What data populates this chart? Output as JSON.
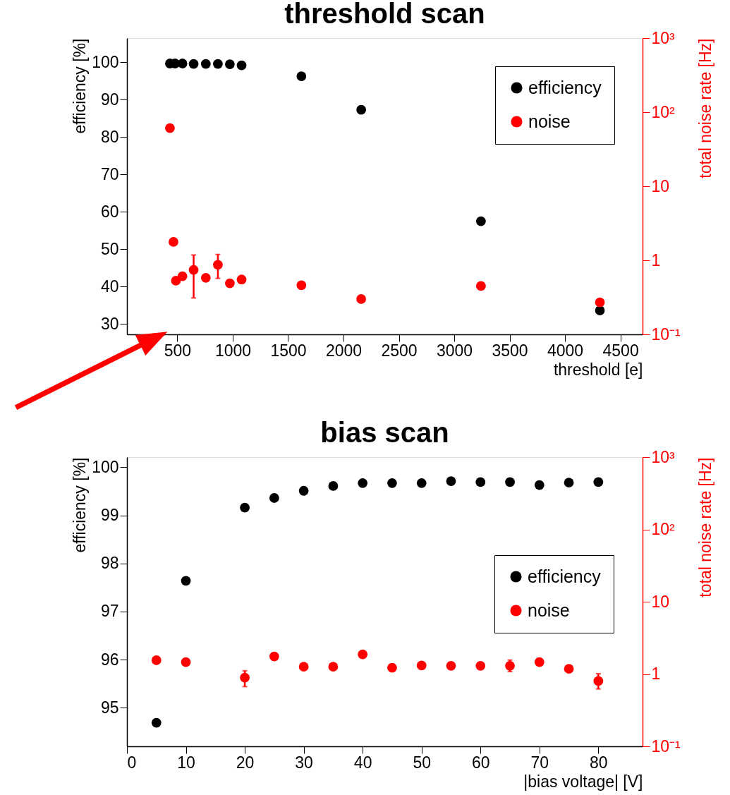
{
  "chart_data": [
    {
      "type": "scatter",
      "title": "threshold scan",
      "xlabel": "threshold [e]",
      "ylabel": "efficiency [%]",
      "y2label": "total noise rate [Hz]",
      "xlim": [
        45,
        4700
      ],
      "xticks": [
        500,
        1000,
        1500,
        2000,
        2500,
        3000,
        3500,
        4000,
        4500
      ],
      "ylim": [
        27.2,
        106.5
      ],
      "yticks": [
        30,
        40,
        50,
        60,
        70,
        80,
        90,
        100
      ],
      "y2lim": [
        0.1,
        1000
      ],
      "y2ticks": [
        {
          "value": 0.1,
          "label": "10⁻¹"
        },
        {
          "value": 1,
          "label": "1"
        },
        {
          "value": 10,
          "label": "10"
        },
        {
          "value": 100,
          "label": "10²"
        },
        {
          "value": 1000,
          "label": "10³"
        }
      ],
      "log": "y2",
      "grid": false,
      "legend": "top right",
      "marker": "circle",
      "series": [
        {
          "name": "efficiency",
          "color": "#000000",
          "x": [
            433,
            479,
            546,
            647,
            757,
            866,
            974,
            1080,
            1620,
            2160,
            3241,
            4315
          ],
          "values": [
            99.7,
            99.7,
            99.7,
            99.6,
            99.6,
            99.6,
            99.5,
            99.2,
            96.3,
            87.3,
            57.5,
            33.6
          ]
        },
        {
          "name": "noise",
          "color": "#ff0000",
          "axis": "y2",
          "x": [
            433,
            465,
            487,
            546,
            647,
            757,
            866,
            974,
            1080,
            1620,
            2160,
            3241,
            4315
          ],
          "values": [
            61,
            1.77,
            0.53,
            0.61,
            0.74,
            0.58,
            0.87,
            0.49,
            0.55,
            0.46,
            0.3,
            0.45,
            0.27
          ],
          "errors": [
            null,
            null,
            null,
            null,
            [
              0.31,
              1.18
            ],
            null,
            [
              0.57,
              1.2
            ],
            null,
            null,
            null,
            null,
            null,
            null
          ]
        }
      ]
    },
    {
      "type": "scatter",
      "title": "bias scan",
      "xlabel": "|bias voltage| [V]",
      "ylabel": "efficiency [%]",
      "y2label": "total noise rate [Hz]",
      "xlim": [
        0,
        87.5
      ],
      "xticks": [
        0,
        10,
        20,
        30,
        40,
        50,
        60,
        70,
        80
      ],
      "ylim": [
        94.2,
        100.21
      ],
      "yticks": [
        95,
        96,
        97,
        98,
        99,
        100
      ],
      "y2lim": [
        0.1,
        1000
      ],
      "y2ticks": [
        {
          "value": 0.1,
          "label": "10⁻¹"
        },
        {
          "value": 1,
          "label": "1"
        },
        {
          "value": 10,
          "label": "10"
        },
        {
          "value": 100,
          "label": "10²"
        },
        {
          "value": 1000,
          "label": "10³"
        }
      ],
      "log": "y2",
      "grid": false,
      "legend": "right",
      "marker": "circle",
      "series": [
        {
          "name": "efficiency",
          "color": "#000000",
          "x": [
            5,
            10,
            20,
            25,
            30,
            35,
            40,
            45,
            50,
            55,
            60,
            65,
            70,
            75,
            80
          ],
          "values": [
            94.69,
            97.64,
            99.16,
            99.36,
            99.51,
            99.61,
            99.67,
            99.67,
            99.67,
            99.71,
            99.69,
            99.69,
            99.63,
            99.68,
            99.69
          ]
        },
        {
          "name": "noise",
          "color": "#ff0000",
          "axis": "y2",
          "x": [
            5,
            10,
            20,
            25,
            30,
            35,
            40,
            45,
            50,
            55,
            60,
            65,
            70,
            75,
            80
          ],
          "values": [
            1.55,
            1.46,
            0.89,
            1.75,
            1.26,
            1.26,
            1.87,
            1.22,
            1.31,
            1.3,
            1.3,
            1.3,
            1.46,
            1.18,
            0.8
          ],
          "errors": [
            null,
            null,
            [
              0.67,
              1.11
            ],
            null,
            null,
            null,
            null,
            null,
            null,
            null,
            null,
            [
              1.08,
              1.56
            ],
            null,
            null,
            [
              0.62,
              1.01
            ]
          ]
        }
      ]
    }
  ]
}
